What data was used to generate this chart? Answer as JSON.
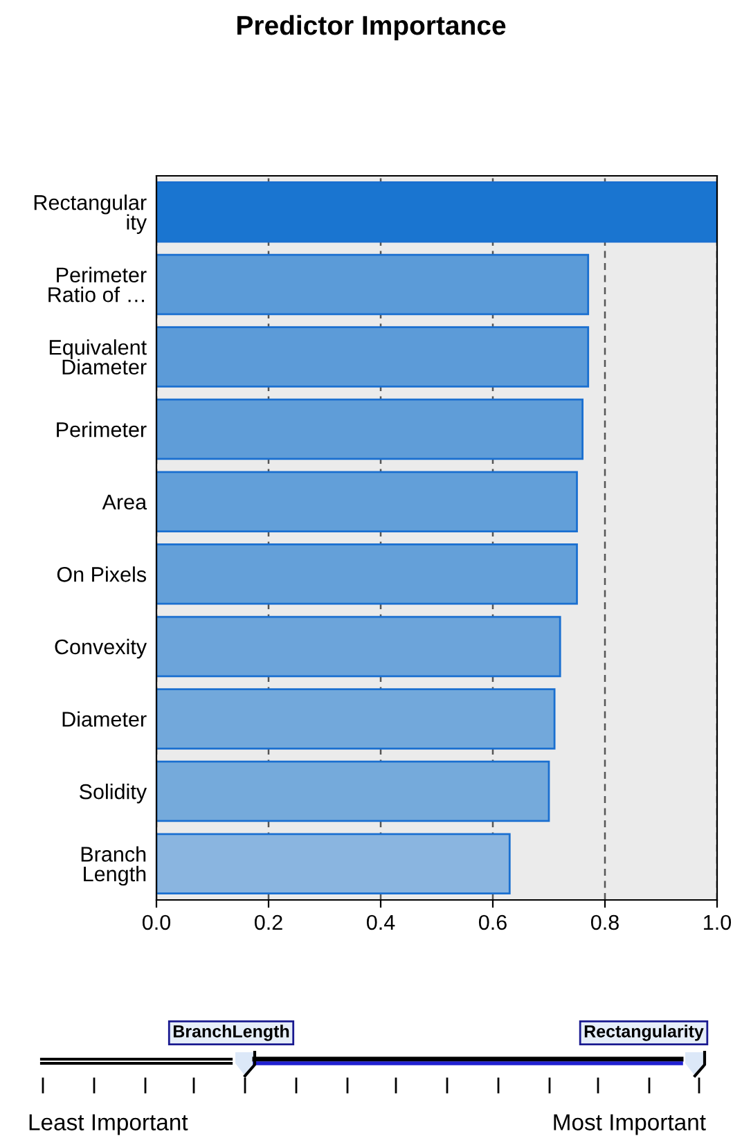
{
  "chart_data": {
    "type": "bar",
    "orientation": "horizontal",
    "title": "Predictor Importance",
    "categories": [
      "Rectangular\nity",
      "Perimeter\nRatio of …",
      "Equivalent\nDiameter",
      "Perimeter",
      "Area",
      "On Pixels",
      "Convexity",
      "Diameter",
      "Solidity",
      "Branch\nLength"
    ],
    "values": [
      1.0,
      0.77,
      0.77,
      0.76,
      0.75,
      0.75,
      0.72,
      0.71,
      0.7,
      0.63
    ],
    "colors": [
      "#1a75d0",
      "#5b9bd8",
      "#5c9bd8",
      "#5f9dd8",
      "#629fd9",
      "#64a0d9",
      "#6ca4da",
      "#72a8db",
      "#75aadb",
      "#8ab5e0"
    ],
    "xlim": [
      0.0,
      1.0
    ],
    "xticks": [
      {
        "value": 0.0,
        "label": "0.0"
      },
      0.2,
      0.4,
      0.6,
      0.8,
      {
        "value": 1.0,
        "label": "1.0"
      }
    ],
    "grid": "x",
    "annotations": [
      "BranchLength",
      "Rectangularity",
      "Least Important",
      "Most Important"
    ]
  }
}
